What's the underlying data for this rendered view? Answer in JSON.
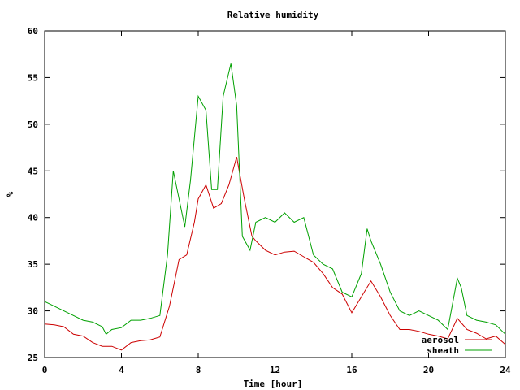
{
  "chart_data": {
    "type": "line",
    "title": "Relative humidity",
    "xlabel": "Time [hour]",
    "ylabel": "%",
    "xlim": [
      0,
      24
    ],
    "ylim": [
      25,
      60
    ],
    "xticks": [
      0,
      4,
      8,
      12,
      16,
      20,
      24
    ],
    "yticks": [
      25,
      30,
      35,
      40,
      45,
      50,
      55,
      60
    ],
    "grid": false,
    "legend_position": "bottom-right",
    "series": [
      {
        "name": "aerosol",
        "color": "#cc0000",
        "x": [
          0,
          0.5,
          1,
          1.5,
          2,
          2.5,
          3,
          3.5,
          4,
          4.5,
          5,
          5.5,
          6,
          6.5,
          6.8,
          7,
          7.4,
          7.8,
          8,
          8.4,
          8.8,
          9.2,
          9.6,
          10,
          10.4,
          10.8,
          11,
          11.5,
          12,
          12.5,
          13,
          13.5,
          14,
          14.5,
          15,
          15.5,
          16,
          16.5,
          17,
          17.5,
          18,
          18.5,
          19,
          19.5,
          20,
          20.5,
          21,
          21.5,
          22,
          22.5,
          23,
          23.5,
          24
        ],
        "values": [
          28.6,
          28.5,
          28.3,
          27.5,
          27.3,
          26.6,
          26.2,
          26.2,
          25.8,
          26.6,
          26.8,
          26.9,
          27.2,
          30.5,
          33.5,
          35.5,
          36.0,
          39.5,
          42.0,
          43.5,
          41.0,
          41.5,
          43.5,
          46.5,
          42.0,
          38.0,
          37.5,
          36.5,
          36.0,
          36.3,
          36.4,
          35.8,
          35.2,
          34.0,
          32.5,
          31.8,
          29.8,
          31.5,
          33.2,
          31.5,
          29.5,
          28.0,
          28.0,
          27.8,
          27.5,
          27.3,
          27.0,
          29.2,
          28.0,
          27.6,
          27.0,
          27.3,
          26.4
        ]
      },
      {
        "name": "sheath",
        "color": "#00a000",
        "x": [
          0,
          0.5,
          1,
          1.5,
          2,
          2.5,
          3,
          3.2,
          3.5,
          4,
          4.5,
          5,
          5.5,
          6,
          6.4,
          6.7,
          7,
          7.3,
          7.6,
          8,
          8.4,
          8.7,
          9,
          9.3,
          9.7,
          10,
          10.3,
          10.7,
          11,
          11.5,
          12,
          12.5,
          13,
          13.5,
          14,
          14.5,
          15,
          15.5,
          16,
          16.5,
          16.8,
          17,
          17.5,
          18,
          18.5,
          19,
          19.5,
          20,
          20.5,
          21,
          21.5,
          21.7,
          22,
          22.5,
          23,
          23.5,
          24
        ],
        "values": [
          31.0,
          30.5,
          30.0,
          29.5,
          29.0,
          28.8,
          28.3,
          27.5,
          28.0,
          28.2,
          29.0,
          29.0,
          29.2,
          29.5,
          36.0,
          45.0,
          42.0,
          39.0,
          44.0,
          53.0,
          51.5,
          43.0,
          43.0,
          53.0,
          56.5,
          52.0,
          38.0,
          36.5,
          39.5,
          40.0,
          39.5,
          40.5,
          39.5,
          40.0,
          36.0,
          35.0,
          34.5,
          32.0,
          31.5,
          34.0,
          38.8,
          37.5,
          35.0,
          32.0,
          30.0,
          29.5,
          30.0,
          29.5,
          29.0,
          28.0,
          33.5,
          32.5,
          29.5,
          29.0,
          28.8,
          28.5,
          27.5
        ]
      }
    ]
  }
}
